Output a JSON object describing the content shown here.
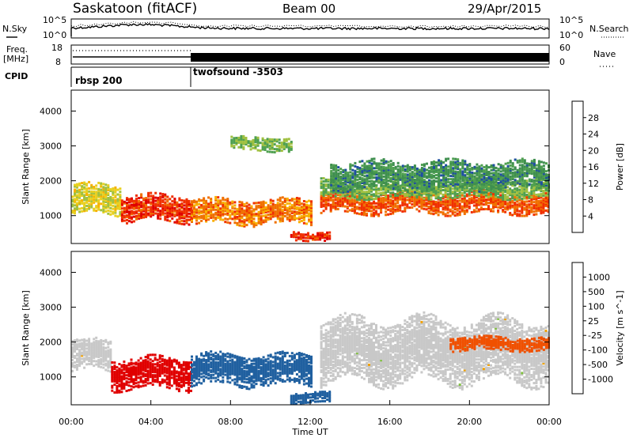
{
  "header": {
    "title": "Saskatoon (fitACF)",
    "beam": "Beam 00",
    "date": "29/Apr/2015"
  },
  "panel_nsky": {
    "left_label": "N.Sky",
    "left_ticks": [
      "10^5",
      "10^0"
    ],
    "right_label": "N.Search",
    "right_ticks": [
      "10^5",
      "10^0"
    ]
  },
  "panel_freq": {
    "left_label_1": "Freq.",
    "left_label_2": "[MHz]",
    "left_ticks": [
      "18",
      "8"
    ],
    "right_label": "Nave",
    "right_ticks": [
      "60",
      "0"
    ]
  },
  "cpid": {
    "label": "CPID",
    "segments": [
      {
        "name": "rbsp 200",
        "start_hour": 0,
        "end_hour": 6
      },
      {
        "name": "twofsound -3503",
        "start_hour": 6,
        "end_hour": 24
      }
    ]
  },
  "colors": {
    "power": [
      "#0000ff",
      "#1f4fa0",
      "#3f8f4f",
      "#4fa050",
      "#a0c040",
      "#e8d020",
      "#f8b000",
      "#f07000",
      "#f03000",
      "#e00000"
    ],
    "velocity": [
      "#e00000",
      "#f05000",
      "#f08000",
      "#f0a000",
      "#c8c8c8",
      "#c8c8c8",
      "#80c040",
      "#409040",
      "#2060a0",
      "#2020c0"
    ]
  },
  "chart_data": [
    {
      "type": "heatmap",
      "panel": "power",
      "ylabel": "Slant Range [km]",
      "xlabel": "",
      "xlim": [
        0,
        24
      ],
      "ylim": [
        200,
        4600
      ],
      "yticks": [
        "1000",
        "2000",
        "3000",
        "4000"
      ],
      "colorbar_label": "Power [dB]",
      "colorbar_ticks": [
        "4",
        "8",
        "12",
        "16",
        "20",
        "24",
        "28"
      ],
      "colorbar_range": [
        0,
        30
      ],
      "bands": [
        {
          "start": 0,
          "end": 2.5,
          "center": 1500,
          "width": 420,
          "value": 16
        },
        {
          "start": 2.5,
          "end": 6,
          "center": 1250,
          "width": 380,
          "value": 26
        },
        {
          "start": 6,
          "end": 12,
          "center": 1150,
          "width": 350,
          "value": 22
        },
        {
          "start": 11,
          "end": 13,
          "center": 450,
          "width": 120,
          "value": 26
        },
        {
          "start": 12.5,
          "end": 24,
          "center": 1400,
          "width": 300,
          "value": 24
        },
        {
          "start": 12.5,
          "end": 24,
          "center": 1800,
          "width": 250,
          "value": 12
        },
        {
          "start": 8,
          "end": 11,
          "center": 3100,
          "width": 200,
          "value": 12
        },
        {
          "start": 13,
          "end": 24,
          "center": 2200,
          "width": 400,
          "value": 8
        }
      ]
    },
    {
      "type": "heatmap",
      "panel": "velocity",
      "ylabel": "Slant Range [km]",
      "xlabel": "Time UT",
      "xlim": [
        0,
        24
      ],
      "ylim": [
        200,
        4600
      ],
      "yticks": [
        "1000",
        "2000",
        "3000",
        "4000"
      ],
      "xticks": [
        "00:00",
        "04:00",
        "08:00",
        "12:00",
        "16:00",
        "20:00",
        "00:00"
      ],
      "colorbar_label": "Velocity [m s^-1]",
      "colorbar_ticks": [
        "1000",
        "500",
        "100",
        "25",
        "-25",
        "-100",
        "-500",
        "-1000"
      ],
      "bands": [
        {
          "start": 0,
          "end": 2,
          "center": 1650,
          "width": 450,
          "value": 0
        },
        {
          "start": 2,
          "end": 6,
          "center": 1150,
          "width": 450,
          "value": -300
        },
        {
          "start": 6,
          "end": 12,
          "center": 1250,
          "width": 450,
          "value": 150
        },
        {
          "start": 12.5,
          "end": 24,
          "center": 1800,
          "width": 900,
          "value": 0
        },
        {
          "start": 19,
          "end": 24,
          "center": 2000,
          "width": 200,
          "value": -150
        },
        {
          "start": 11,
          "end": 13,
          "center": 450,
          "width": 150,
          "value": 200
        }
      ]
    }
  ]
}
